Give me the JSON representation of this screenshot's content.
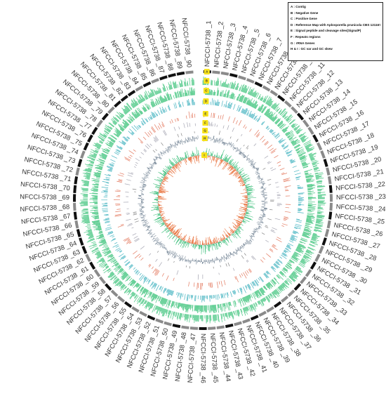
{
  "legend": {
    "items": [
      "A : Contig",
      "B : Negative Gene",
      "C : Positive Gene",
      "D : Reference Map with Aplosporella prunicola CBS 121167",
      "E : Signal peptide and cleavage sites(SignalP)",
      "F : Repeats regions",
      "G : rRNA Genes",
      "H & I : GC var and GC skew"
    ]
  },
  "ring_tags": [
    "A",
    "B",
    "C",
    "D",
    "E",
    "F",
    "G",
    "H",
    "I"
  ],
  "contigs": [
    "NFCCI-5738 _1",
    "NFCCI-5738 _2",
    "NFCCI-5738 _3",
    "NFCCI-5738 _4",
    "NFCCI-5738 _5",
    "NFCCI-5738 _6",
    "NFCCI-5738 _7",
    "NFCCI-5738 _8",
    "NFCCI-5738 _9",
    "NFCCI-5738 _10",
    "NFCCI-5738 _11",
    "NFCCI-5738 _12",
    "NFCCI-5738 _13",
    "NFCCI-5738 _14",
    "NFCCI-5738 _15",
    "NFCCI-5738 _16",
    "NFCCI-5738 _17",
    "NFCCI-5738 _18",
    "NFCCI-5738 _19",
    "NFCCI-5738 _20",
    "NFCCI-5738 _21",
    "NFCCI-5738 _22",
    "NFCCI-5738 _23",
    "NFCCI-5738 _24",
    "NFCCI-5738 _25",
    "NFCCI-5738 _26",
    "NFCCI-5738 _27",
    "NFCCI-5738 _28",
    "NFCCI-5738 _29",
    "NFCCI-5738 _30",
    "NFCCI-5738 _31",
    "NFCCI-5738 _32",
    "NFCCI-5738 _33",
    "NFCCI-5738 _34",
    "NFCCI-5738 _35",
    "NFCCI-5738 _36",
    "NFCCI-5738 _37",
    "NFCCI-5738 _38",
    "NFCCI-5738 _39",
    "NFCCI-5738 _40",
    "NFCCI-5738 _41",
    "NFCCI-5738 _42",
    "NFCCI-5738 _43",
    "NFCCI-5738 _44",
    "NFCCI-5738 _45",
    "NFCCI-5738 _46",
    "NFCCI-5738 _47",
    "NFCCI-5738 _48",
    "NFCCI-5738 _49",
    "NFCCI-5738 _50",
    "NFCCI-5738 _51",
    "NFCCI-5738 _52",
    "NFCCI-5738 _53",
    "NFCCI-5738 _54",
    "NFCCI-5738 _55",
    "NFCCI-5738 _56",
    "NFCCI-5738 _57",
    "NFCCI-5738 _58",
    "NFCCI-5738 _59",
    "NFCCI-5738 _60",
    "NFCCI-5738 _61",
    "NFCCI-5738 _62",
    "NFCCI-5738 _63",
    "NFCCI-5738 _64",
    "NFCCI-5738 _65",
    "NFCCI-5738 _66",
    "NFCCI-5738 _67",
    "NFCCI-5738 _68",
    "NFCCI-5738 _69",
    "NFCCI-5738 _70",
    "NFCCI-5738 _71",
    "NFCCI-5738 _72",
    "NFCCI-5738 _73",
    "NFCCI-5738 _74",
    "NFCCI-5738 _75",
    "NFCCI-5738 _76",
    "NFCCI-5738 _77",
    "NFCCI-5738 _78",
    "NFCCI-5738 _79",
    "NFCCI-5738 _80",
    "NFCCI-5738 _81",
    "NFCCI-5738 _82",
    "NFCCI-5738 _83",
    "NFCCI-5738 _84",
    "NFCCI-5738 _85",
    "NFCCI-5738 _86",
    "NFCCI-5738 _87",
    "NFCCI-5738 _88",
    "NFCCI-5738 _89",
    "NFCCI-5738 _90"
  ],
  "colors": {
    "contig_dark": "#111111",
    "contig_gray": "#8a8a8a",
    "negative_gene": "#2fbf71",
    "positive_gene": "#2fbf71",
    "reference_map": "#20a4b4",
    "signalp": "#e06a4e",
    "repeats": "#9a9aa8",
    "rrna": "#777777",
    "gc_var": "#7a8a9a",
    "gc_skew_pos": "#3cbf7a",
    "gc_skew_neg": "#e8703a",
    "tag": "#f7e21a"
  }
}
